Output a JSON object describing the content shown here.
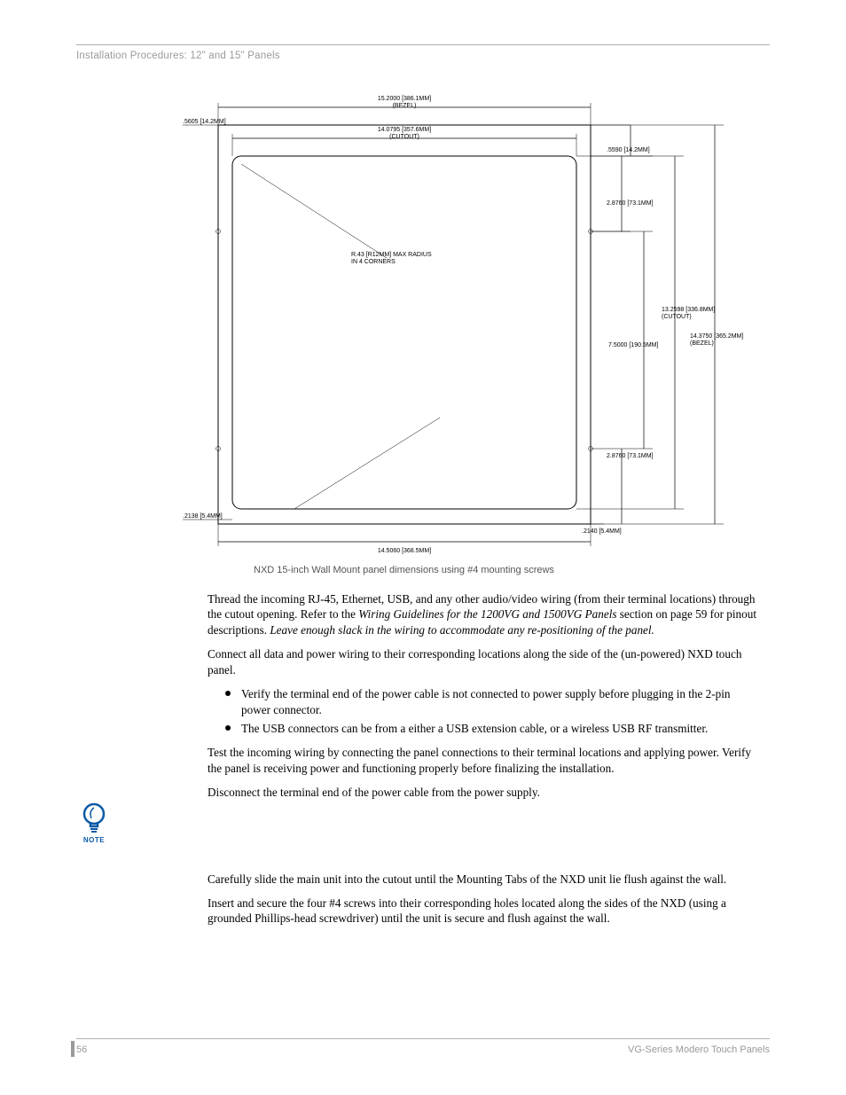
{
  "header": {
    "title": "Installation Procedures: 12\" and 15\" Panels"
  },
  "diagram": {
    "caption": "NXD 15-inch Wall Mount panel dimensions using #4 mounting screws",
    "labels": {
      "top_outer": "15.2000  [386.1MM]\n(BEZEL)",
      "top_inner": "14.0795  [357.6MM]\n(CUTOUT)",
      "left_top": ".5605  [14.2MM]",
      "right_top": ".5590  [14.2MM]",
      "right_upper": "2.8760  [73.1MM]",
      "center_radius": "R.43  [R12MM]  MAX  RADIUS\nIN  4  CORNERS",
      "right_cutout": "13.2598  [336.8MM]\n(CUTOUT)",
      "right_bezel": "14.3750  [365.2MM]\n(BEZEL)",
      "right_mid": "7.5000  [190.5MM]",
      "right_lower": "2.8760  [73.1MM]",
      "left_bottom": ".2138  [5.4MM]",
      "bottom_right": ".2140  [5.4MM]",
      "bottom_width": "14.5060  [368.5MM]"
    }
  },
  "body": {
    "p1a": "Thread the incoming RJ-45, Ethernet, USB, and any other audio/video wiring (from their terminal locations) through the cutout opening. Refer to the ",
    "p1b": "Wiring Guidelines for the 1200VG and 1500VG Panels",
    "p1c": " section on page 59 for pinout descriptions. ",
    "p1d": "Leave enough slack in the wiring to accommodate any re-positioning of the panel.",
    "p2": "Connect all data and power wiring to their corresponding locations along the side of the (un-powered) NXD touch panel.",
    "li1": "Verify the terminal end of the power cable is not connected to power supply before plugging in the 2-pin power connector.",
    "li2": "The USB connectors can be from a either a USB extension cable, or a wireless USB RF transmitter.",
    "p3": "Test the incoming wiring by connecting the panel connections to their terminal locations and applying power. Verify the panel is receiving power and functioning properly before finalizing the installation.",
    "p4": "Disconnect the terminal end of the power cable from the power supply.",
    "p5": "Carefully slide the main unit into the cutout until the Mounting Tabs of the NXD unit lie flush against the wall.",
    "p6": "Insert and secure the four #4 screws into their corresponding holes located along the sides of the NXD (using a grounded Phillips-head screwdriver) until the unit is secure and flush against the wall."
  },
  "note": {
    "label": "NOTE"
  },
  "footer": {
    "page": "56",
    "doc": "VG-Series Modero Touch Panels"
  }
}
